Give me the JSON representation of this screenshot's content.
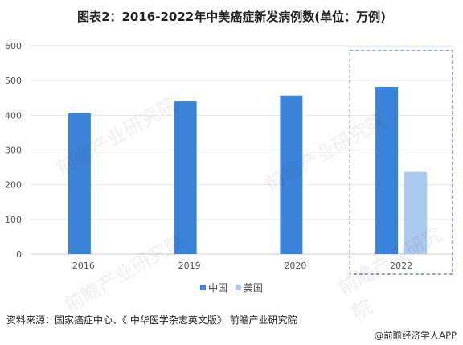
{
  "title": "图表2：2016-2022年中美癌症新发病例数(单位：万例)",
  "source": "资料来源：国家癌症中心、《 中华医学杂志英文版》 前瞻产业研究院",
  "brand": "@前瞻经济学人APP",
  "watermark": "前瞻产业研究院",
  "colors": {
    "china": "#3b82d9",
    "usa": "#a9c9ef",
    "grid": "#e6e6e6",
    "highlight": "#3f6fa8"
  },
  "chart_data": {
    "type": "bar",
    "title": "图表2：2016-2022年中美癌症新发病例数(单位：万例)",
    "categories": [
      "2016",
      "2019",
      "2020",
      "2022"
    ],
    "series": [
      {
        "name": "中国",
        "values": [
          406,
          440,
          457,
          482
        ]
      },
      {
        "name": "美国",
        "values": [
          null,
          null,
          null,
          237
        ]
      }
    ],
    "ylim": [
      0,
      600
    ],
    "yticks": [
      "0",
      "100",
      "200",
      "300",
      "400",
      "500",
      "600"
    ],
    "grid": true,
    "legend": "bottom",
    "highlight_category": "2022"
  }
}
